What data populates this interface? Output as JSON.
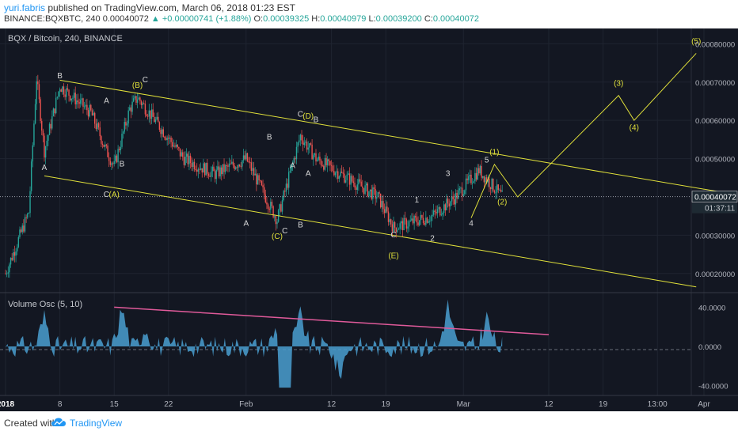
{
  "header": {
    "user": "yuri.fabris",
    "published": " published on TradingView.com, March 06, 2018 01:23 EST",
    "symbol": "BINANCE:BQXBTC, 240",
    "last": "0.00040072",
    "change_arrow": "▲",
    "change": "+0.00000741 (+1.88%)",
    "o_label": "O:",
    "o": "0.00039325",
    "h_label": "H:",
    "h": "0.00040979",
    "l_label": "L:",
    "l": "0.00039200",
    "c_label": "C:",
    "c": "0.00040072"
  },
  "pane_title": "BQX / Bitcoin, 240, BINANCE",
  "price_axis": [
    "0.00080000",
    "0.00070000",
    "0.00060000",
    "0.00050000",
    "0.00030000",
    "0.00020000"
  ],
  "last_price_tag": "0.00040072",
  "countdown_tag": "01:37:11",
  "osc_title": "Volume Osc (5, 10)",
  "osc_axis": [
    "40.0000",
    "0.0000",
    "-40.0000"
  ],
  "time_axis": [
    "2018",
    "8",
    "15",
    "22",
    "Feb",
    "12",
    "19",
    "Mar",
    "12",
    "19",
    "13:00",
    "Apr"
  ],
  "footer": {
    "created": "Created with",
    "brand": "TradingView"
  },
  "colors": {
    "bg": "#131722",
    "up": "#26a69a",
    "down": "#ef5350",
    "annotation": "#e0e03a",
    "wave_label": "#d9d9d9",
    "osc_fill": "#4a9fd0",
    "osc_trend": "#e05a9a"
  },
  "chart_data": {
    "type": "candlestick",
    "title": "BQX / Bitcoin, 240, BINANCE",
    "ylim": [
      0.00015,
      0.00084
    ],
    "price_path": [
      {
        "x": "2018-01-01",
        "y": 0.0002
      },
      {
        "x": "2018-01-04",
        "y": 0.00036
      },
      {
        "x": "2018-01-05",
        "y": 0.00071
      },
      {
        "x": "2018-01-06",
        "y": 0.00052
      },
      {
        "x": "2018-01-08",
        "y": 0.00069
      },
      {
        "x": "2018-01-12",
        "y": 0.00062
      },
      {
        "x": "2018-01-14",
        "y": 0.00052
      },
      {
        "x": "2018-01-15",
        "y": 0.00048
      },
      {
        "x": "2018-01-17",
        "y": 0.00063
      },
      {
        "x": "2018-01-18",
        "y": 0.00066
      },
      {
        "x": "2018-01-24",
        "y": 0.0005
      },
      {
        "x": "2018-01-28",
        "y": 0.00046
      },
      {
        "x": "2018-02-01",
        "y": 0.0005
      },
      {
        "x": "2018-02-05",
        "y": 0.00034
      },
      {
        "x": "2018-02-08",
        "y": 0.00056
      },
      {
        "x": "2018-02-10",
        "y": 0.0005
      },
      {
        "x": "2018-02-14",
        "y": 0.00045
      },
      {
        "x": "2018-02-18",
        "y": 0.0004
      },
      {
        "x": "2018-02-20",
        "y": 0.00032
      },
      {
        "x": "2018-02-25",
        "y": 0.00035
      },
      {
        "x": "2018-02-28",
        "y": 0.0004
      },
      {
        "x": "2018-03-03",
        "y": 0.00047
      },
      {
        "x": "2018-03-06",
        "y": 0.0004
      }
    ],
    "channel_lines": [
      {
        "from": {
          "x": "2018-01-08",
          "y": 0.000705
        },
        "to": {
          "x": "2018-04-04",
          "y": 0.00041
        }
      },
      {
        "from": {
          "x": "2018-01-06",
          "y": 0.000455
        },
        "to": {
          "x": "2018-03-31",
          "y": 0.000165
        }
      }
    ],
    "wave_labels": [
      "A",
      "B",
      "C",
      "A",
      "B",
      "C",
      "A",
      "B",
      "C",
      "A",
      "B",
      "C",
      "A",
      "B",
      "C",
      "1",
      "2",
      "3",
      "4",
      "5"
    ],
    "projection": {
      "labels": [
        "(1)",
        "(2)",
        "(3)",
        "(4)",
        "(5)"
      ],
      "points": [
        {
          "x": "2018-03-02",
          "y": 0.000345
        },
        {
          "x": "2018-03-05",
          "y": 0.000485
        },
        {
          "x": "2018-03-08",
          "y": 0.0004
        },
        {
          "x": "2018-03-21",
          "y": 0.000665
        },
        {
          "x": "2018-03-23",
          "y": 0.0006
        },
        {
          "x": "2018-03-31",
          "y": 0.000775
        }
      ]
    },
    "bracket_labels": [
      "(A)",
      "(B)",
      "(C)",
      "(D)",
      "(E)"
    ],
    "oscillator": {
      "name": "Volume Osc (5, 10)",
      "ylim": [
        -50,
        50
      ],
      "trendline": {
        "from": {
          "x": "2018-01-15",
          "y": 40
        },
        "to": {
          "x": "2018-03-12",
          "y": 12
        }
      }
    }
  }
}
